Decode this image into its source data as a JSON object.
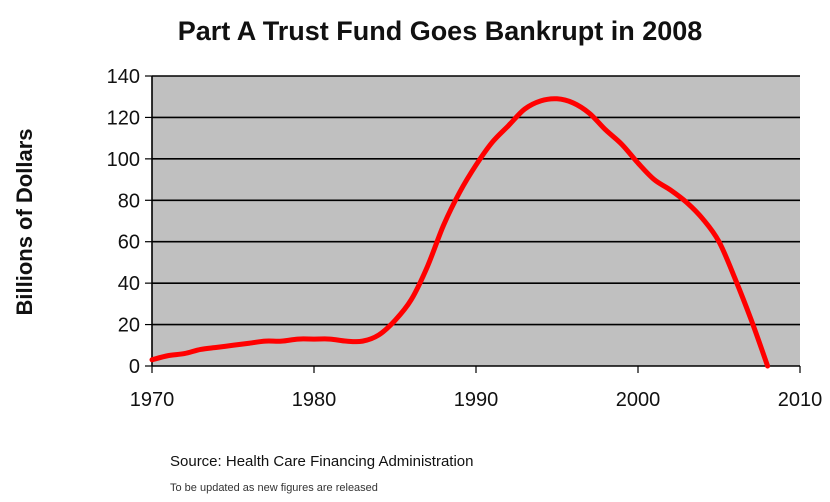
{
  "chart_data": {
    "type": "line",
    "title": "Part A Trust Fund Goes Bankrupt in 2008",
    "xlabel": "",
    "ylabel": "Billions of Dollars",
    "xlim": [
      1970,
      2010
    ],
    "ylim": [
      0,
      140
    ],
    "x_ticks": [
      "1970",
      "1980",
      "1990",
      "2000",
      "2010"
    ],
    "y_ticks": [
      "0",
      "20",
      "40",
      "60",
      "80",
      "100",
      "120",
      "140"
    ],
    "grid": true,
    "legend": "none",
    "series": [
      {
        "x": [
          1970,
          1971,
          1972,
          1973,
          1974,
          1975,
          1976,
          1977,
          1978,
          1979,
          1980,
          1981,
          1982,
          1983,
          1984,
          1985,
          1986,
          1987,
          1988,
          1989,
          1990,
          1991,
          1992,
          1993,
          1994,
          1995,
          1996,
          1997,
          1998,
          1999,
          2000,
          2001,
          2002,
          2003,
          2004,
          2005,
          2006,
          2007,
          2008
        ],
        "y": [
          3,
          5,
          6,
          8,
          9,
          10,
          11,
          12,
          12,
          13,
          13,
          13,
          12,
          12,
          15,
          22,
          32,
          48,
          68,
          84,
          97,
          108,
          116,
          124,
          128,
          129,
          127,
          122,
          114,
          107,
          98,
          90,
          85,
          79,
          71,
          60,
          42,
          22,
          0
        ]
      }
    ],
    "annotations": {
      "source": "Source: Health Care Financing Administration",
      "note": "To be updated as new figures are released"
    },
    "colors": {
      "plot_bg": "#c0c0c0",
      "grid": "#000000",
      "line": "#ff0000"
    }
  }
}
